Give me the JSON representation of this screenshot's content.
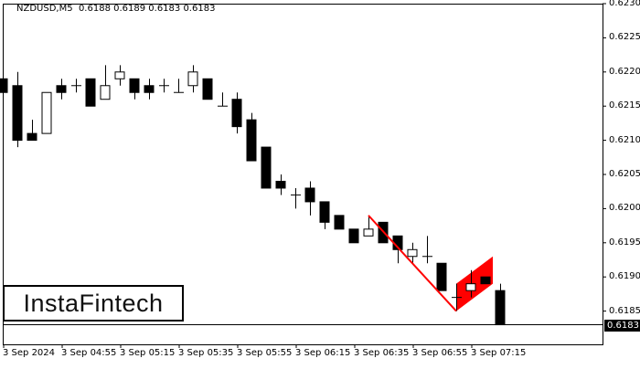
{
  "header": {
    "symbol": "NZDUSD,M5",
    "ohlc": "0.6188 0.6189 0.6183 0.6183"
  },
  "logo": {
    "text": "InstaFintech"
  },
  "price_tag": "0.6183",
  "colors": {
    "bull": "#ffffff",
    "bear": "#000000",
    "pattern": "#ff0000",
    "axis": "#000000"
  },
  "chart_data": {
    "type": "candlestick",
    "title": "NZDUSD,M5 0.6188 0.6189 0.6183 0.6183",
    "xlabel": "",
    "ylabel": "",
    "ylim": [
      0.6183,
      0.623
    ],
    "y_ticks": [
      "0.6230",
      "0.6225",
      "0.6220",
      "0.6215",
      "0.6210",
      "0.6205",
      "0.6200",
      "0.6195",
      "0.6190",
      "0.6185"
    ],
    "x_ticks": [
      "3 Sep 2024",
      "3 Sep 04:55",
      "3 Sep 05:15",
      "3 Sep 05:35",
      "3 Sep 05:55",
      "3 Sep 06:15",
      "3 Sep 06:35",
      "3 Sep 06:55",
      "3 Sep 07:15"
    ],
    "current_price": 0.6183,
    "grid": false,
    "candles": [
      {
        "o": 0.6219,
        "h": 0.6221,
        "l": 0.6215,
        "c": 0.6217
      },
      {
        "o": 0.6218,
        "h": 0.622,
        "l": 0.6209,
        "c": 0.621
      },
      {
        "o": 0.6211,
        "h": 0.6213,
        "l": 0.621,
        "c": 0.621
      },
      {
        "o": 0.6211,
        "h": 0.6217,
        "l": 0.6211,
        "c": 0.6217
      },
      {
        "o": 0.6218,
        "h": 0.6219,
        "l": 0.6216,
        "c": 0.6217
      },
      {
        "o": 0.6218,
        "h": 0.6219,
        "l": 0.6217,
        "c": 0.6218
      },
      {
        "o": 0.6219,
        "h": 0.6219,
        "l": 0.6215,
        "c": 0.6215
      },
      {
        "o": 0.6216,
        "h": 0.6221,
        "l": 0.6216,
        "c": 0.6218
      },
      {
        "o": 0.6219,
        "h": 0.6221,
        "l": 0.6218,
        "c": 0.622
      },
      {
        "o": 0.6219,
        "h": 0.6219,
        "l": 0.6216,
        "c": 0.6217
      },
      {
        "o": 0.6218,
        "h": 0.6219,
        "l": 0.6216,
        "c": 0.6217
      },
      {
        "o": 0.6218,
        "h": 0.6219,
        "l": 0.6217,
        "c": 0.6218
      },
      {
        "o": 0.6217,
        "h": 0.6219,
        "l": 0.6217,
        "c": 0.6217
      },
      {
        "o": 0.6218,
        "h": 0.6221,
        "l": 0.6217,
        "c": 0.622
      },
      {
        "o": 0.6219,
        "h": 0.6219,
        "l": 0.6216,
        "c": 0.6216
      },
      {
        "o": 0.6215,
        "h": 0.6217,
        "l": 0.6215,
        "c": 0.6215
      },
      {
        "o": 0.6216,
        "h": 0.6217,
        "l": 0.6211,
        "c": 0.6212
      },
      {
        "o": 0.6213,
        "h": 0.6214,
        "l": 0.6207,
        "c": 0.6207
      },
      {
        "o": 0.6209,
        "h": 0.6209,
        "l": 0.6203,
        "c": 0.6203
      },
      {
        "o": 0.6204,
        "h": 0.6205,
        "l": 0.6202,
        "c": 0.6203
      },
      {
        "o": 0.6202,
        "h": 0.6203,
        "l": 0.62,
        "c": 0.6202
      },
      {
        "o": 0.6203,
        "h": 0.6204,
        "l": 0.6199,
        "c": 0.6201
      },
      {
        "o": 0.6201,
        "h": 0.6201,
        "l": 0.6197,
        "c": 0.6198
      },
      {
        "o": 0.6199,
        "h": 0.6199,
        "l": 0.6197,
        "c": 0.6197
      },
      {
        "o": 0.6197,
        "h": 0.6197,
        "l": 0.6195,
        "c": 0.6195
      },
      {
        "o": 0.6196,
        "h": 0.6199,
        "l": 0.6196,
        "c": 0.6197
      },
      {
        "o": 0.6198,
        "h": 0.6198,
        "l": 0.6195,
        "c": 0.6195
      },
      {
        "o": 0.6196,
        "h": 0.6196,
        "l": 0.6192,
        "c": 0.6194
      },
      {
        "o": 0.6193,
        "h": 0.6195,
        "l": 0.6192,
        "c": 0.6194
      },
      {
        "o": 0.6193,
        "h": 0.6196,
        "l": 0.6192,
        "c": 0.6193
      },
      {
        "o": 0.6192,
        "h": 0.6192,
        "l": 0.6188,
        "c": 0.6188
      },
      {
        "o": 0.6187,
        "h": 0.6189,
        "l": 0.6185,
        "c": 0.6187
      },
      {
        "o": 0.6188,
        "h": 0.6191,
        "l": 0.6187,
        "c": 0.6189
      },
      {
        "o": 0.619,
        "h": 0.619,
        "l": 0.6189,
        "c": 0.6189
      },
      {
        "o": 0.6188,
        "h": 0.6189,
        "l": 0.6183,
        "c": 0.6183
      }
    ],
    "annotations": [
      {
        "type": "flag-pole",
        "color": "#ff0000",
        "from": {
          "index": 25,
          "price": 0.6199
        },
        "to": {
          "index": 31,
          "price": 0.6185
        }
      },
      {
        "type": "flag",
        "color": "#ff0000",
        "shape": "parallelogram",
        "points": [
          {
            "index": 31,
            "price": 0.6185
          },
          {
            "index": 31,
            "price": 0.6189
          },
          {
            "index": 33.5,
            "price": 0.6193
          },
          {
            "index": 33.5,
            "price": 0.6189
          }
        ]
      }
    ],
    "legend": null
  }
}
